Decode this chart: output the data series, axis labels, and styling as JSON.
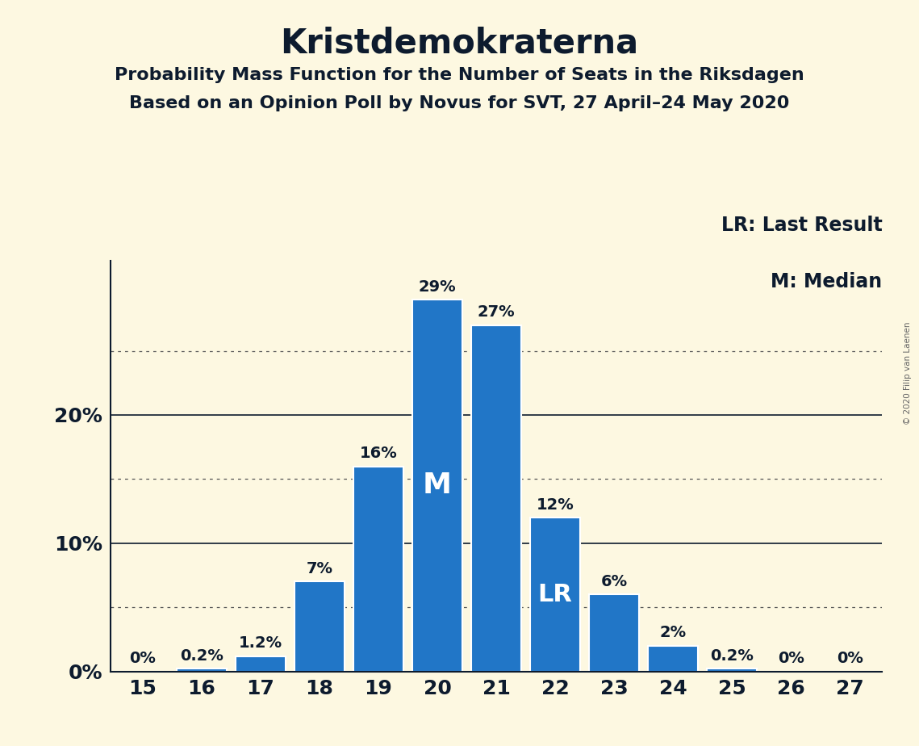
{
  "title": "Kristdemokraterna",
  "subtitle1": "Probability Mass Function for the Number of Seats in the Riksdagen",
  "subtitle2": "Based on an Opinion Poll by Novus for SVT, 27 April–24 May 2020",
  "copyright": "© 2020 Filip van Laenen",
  "legend_lr": "LR: Last Result",
  "legend_m": "M: Median",
  "categories": [
    15,
    16,
    17,
    18,
    19,
    20,
    21,
    22,
    23,
    24,
    25,
    26,
    27
  ],
  "values": [
    0.0,
    0.2,
    1.2,
    7.0,
    16.0,
    29.0,
    27.0,
    12.0,
    6.0,
    2.0,
    0.2,
    0.0,
    0.0
  ],
  "bar_labels": [
    "0%",
    "0.2%",
    "1.2%",
    "7%",
    "16%",
    "29%",
    "27%",
    "12%",
    "6%",
    "2%",
    "0.2%",
    "0%",
    "0%"
  ],
  "bar_color": "#2176c7",
  "background_color": "#fdf8e1",
  "text_color": "#0d1b2e",
  "median_bar": 20,
  "lr_bar": 22,
  "yticks": [
    0,
    10,
    20
  ],
  "ytick_labels": [
    "0%",
    "10%",
    "20%"
  ],
  "ylim": [
    0,
    32
  ],
  "dotted_gridlines": [
    5,
    15,
    25
  ],
  "solid_gridlines": [
    10,
    20
  ],
  "title_fontsize": 30,
  "subtitle_fontsize": 16,
  "bar_label_fontsize": 14,
  "axis_tick_fontsize": 18,
  "legend_fontsize": 17,
  "inner_label_fontsize_m": 26,
  "inner_label_fontsize_lr": 22
}
